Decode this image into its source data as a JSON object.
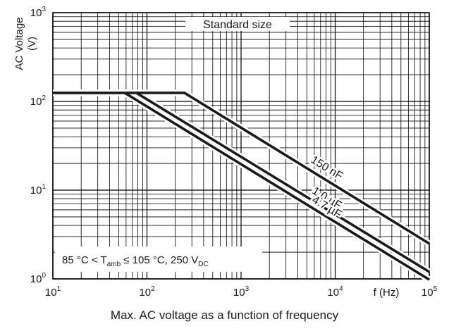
{
  "chart_data": {
    "type": "line",
    "x_scale": "log",
    "y_scale": "log",
    "xlim": [
      10,
      100000
    ],
    "ylim": [
      1,
      1000
    ],
    "grid": true,
    "xlabel": "f (Hz)",
    "ylabel": "AC Voltage",
    "ylabel_unit": "(V)",
    "x_ticks": [
      {
        "base": "10",
        "exp": "1",
        "value": 10
      },
      {
        "base": "10",
        "exp": "2",
        "value": 100
      },
      {
        "base": "10",
        "exp": "3",
        "value": 1000
      },
      {
        "base": "10",
        "exp": "4",
        "value": 10000
      },
      {
        "base": "10",
        "exp": "5",
        "value": 100000
      }
    ],
    "y_ticks": [
      {
        "base": "10",
        "exp": "0",
        "value": 1
      },
      {
        "base": "10",
        "exp": "1",
        "value": 10
      },
      {
        "base": "10",
        "exp": "2",
        "value": 100
      },
      {
        "base": "10",
        "exp": "3",
        "value": 1000
      }
    ],
    "series": [
      {
        "name": "150 nF",
        "x": [
          10,
          250,
          100000
        ],
        "y": [
          125,
          125,
          2.5
        ]
      },
      {
        "name": "1.0 µF",
        "x": [
          10,
          77,
          100000
        ],
        "y": [
          125,
          125,
          1.2
        ]
      },
      {
        "name": "4.7 µF",
        "x": [
          10,
          58,
          100000
        ],
        "y": [
          125,
          125,
          0.98
        ]
      }
    ],
    "annotations": {
      "standard_size": "Standard size",
      "condition": {
        "t1": "85 °C < T",
        "sub1": "amb",
        "t2": " ≤ 105 °C, 250 V",
        "sub2": "DC"
      }
    },
    "caption": "Max. AC voltage as a function of frequency"
  }
}
